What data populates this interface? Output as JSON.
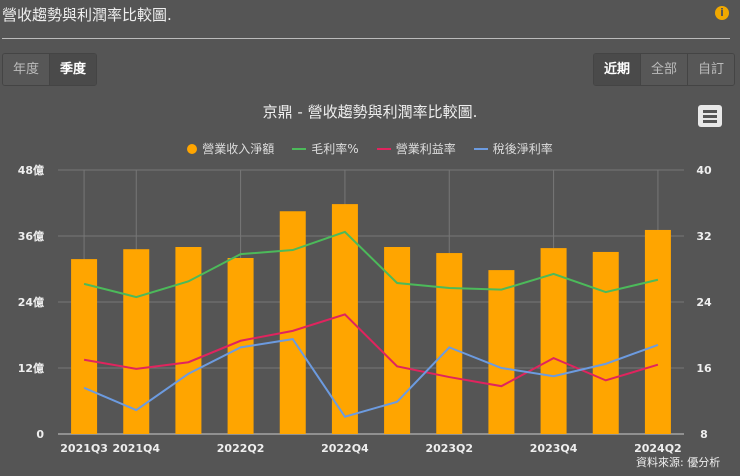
{
  "header": {
    "title": "營收趨勢與利潤率比較圖.",
    "info_icon": "info-icon"
  },
  "period_tabs": [
    {
      "label": "年度",
      "active": false
    },
    {
      "label": "季度",
      "active": true
    }
  ],
  "range_tabs": [
    {
      "label": "近期",
      "active": true
    },
    {
      "label": "全部",
      "active": false
    },
    {
      "label": "自訂",
      "active": false
    }
  ],
  "source": "資料來源: 優分析",
  "chart_data": {
    "type": "bar+line",
    "title": "京鼎 - 營收趨勢與利潤率比較圖.",
    "legend_position": "top",
    "grid": true,
    "categories": [
      "2021Q3",
      "2021Q4",
      "2022Q1",
      "2022Q2",
      "2022Q3",
      "2022Q4",
      "2023Q1",
      "2023Q2",
      "2023Q3",
      "2023Q4",
      "2024Q1",
      "2024Q2"
    ],
    "x_tick_labels": [
      "2021Q3",
      "2021Q4",
      "",
      "2022Q2",
      "",
      "2022Q4",
      "",
      "2023Q2",
      "",
      "2023Q4",
      "",
      "2024Q2"
    ],
    "y_left": {
      "ticks": [
        "0",
        "12億",
        "24億",
        "36億",
        "48億"
      ],
      "range": [
        0,
        48
      ]
    },
    "y_right": {
      "ticks": [
        "8",
        "16",
        "24",
        "32",
        "40"
      ],
      "range": [
        8,
        40
      ]
    },
    "series": [
      {
        "name": "營業收入淨額",
        "type": "bar",
        "axis": "left",
        "color": "#ffa500",
        "values": [
          31.8,
          33.6,
          34.0,
          32.0,
          40.5,
          41.8,
          34.0,
          32.9,
          29.8,
          33.8,
          33.1,
          37.1
        ]
      },
      {
        "name": "毛利率%",
        "type": "line",
        "axis": "right",
        "color": "#4cba5a",
        "values": [
          26.2,
          24.6,
          26.5,
          29.8,
          30.3,
          32.5,
          26.3,
          25.7,
          25.5,
          27.4,
          25.2,
          26.7
        ]
      },
      {
        "name": "營業利益率",
        "type": "line",
        "axis": "right",
        "color": "#e0245e",
        "values": [
          17.0,
          15.9,
          16.7,
          19.3,
          20.5,
          22.5,
          16.2,
          14.9,
          13.8,
          17.2,
          14.5,
          16.4
        ]
      },
      {
        "name": "稅後淨利率",
        "type": "line",
        "axis": "right",
        "color": "#6c9be0",
        "values": [
          13.6,
          10.9,
          15.3,
          18.5,
          19.5,
          10.1,
          11.9,
          18.5,
          16.0,
          15.0,
          16.5,
          18.8
        ]
      }
    ]
  }
}
